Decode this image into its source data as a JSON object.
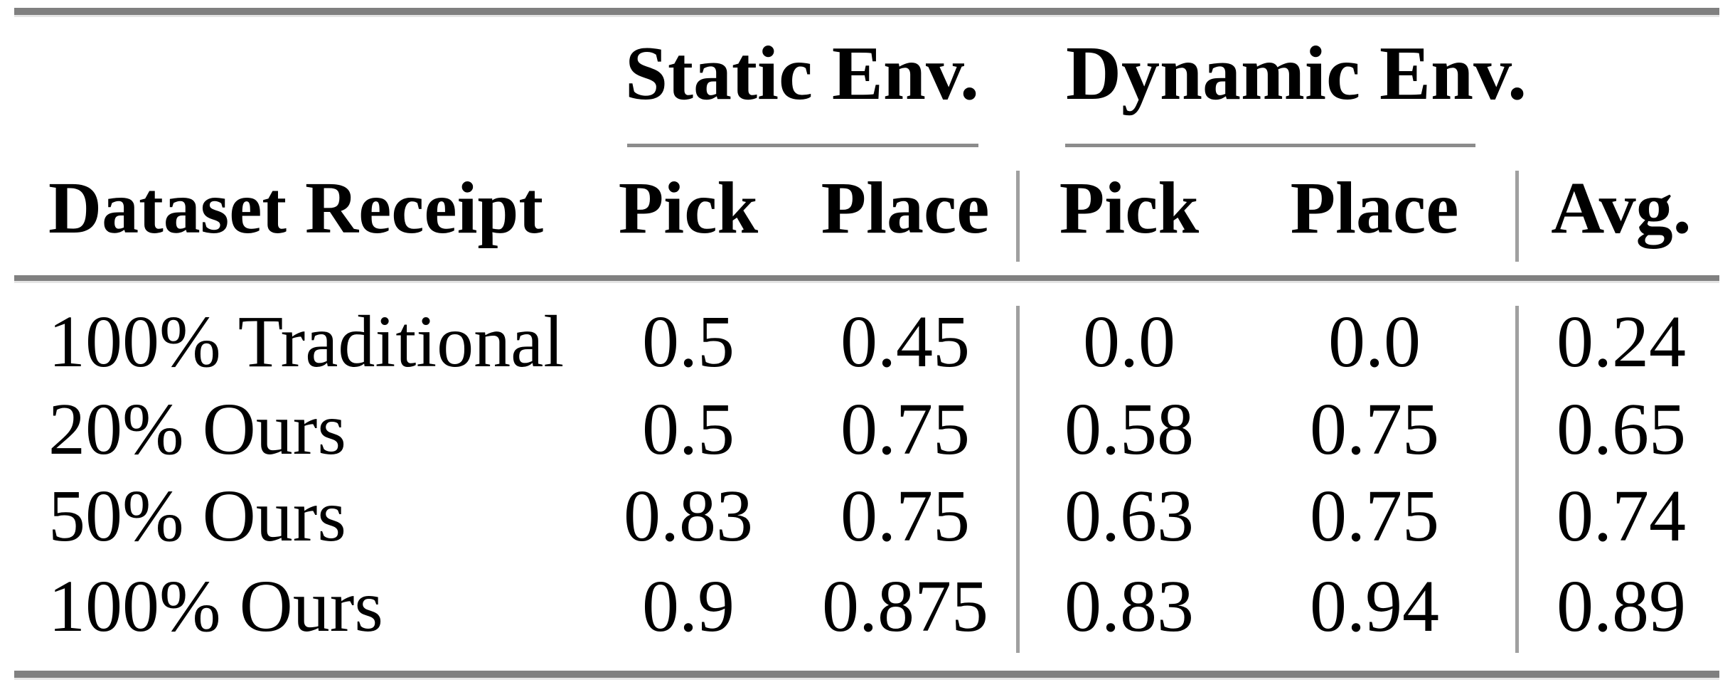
{
  "table": {
    "group_headers": [
      {
        "label": "Static Env."
      },
      {
        "label": "Dynamic Env."
      }
    ],
    "column_headers": {
      "dataset": "Dataset Receipt",
      "static_pick": "Pick",
      "static_place": "Place",
      "dynamic_pick": "Pick",
      "dynamic_place": "Place",
      "avg": "Avg."
    },
    "rows": [
      {
        "dataset_receipt": "100% Traditional",
        "static_pick": "0.5",
        "static_place": "0.45",
        "dynamic_pick": "0.0",
        "dynamic_place": "0.0",
        "avg": "0.24"
      },
      {
        "dataset_receipt": "20% Ours",
        "static_pick": "0.5",
        "static_place": "0.75",
        "dynamic_pick": "0.58",
        "dynamic_place": "0.75",
        "avg": "0.65"
      },
      {
        "dataset_receipt": "50% Ours",
        "static_pick": "0.83",
        "static_place": "0.75",
        "dynamic_pick": "0.63",
        "dynamic_place": "0.75",
        "avg": "0.74"
      },
      {
        "dataset_receipt": "100% Ours",
        "static_pick": "0.9",
        "static_place": "0.875",
        "dynamic_pick": "0.83",
        "dynamic_place": "0.94",
        "avg": "0.89"
      }
    ]
  },
  "colors": {
    "text": "#000000",
    "thick_rule": "#808080",
    "cmidrule": "#8c8c8c",
    "vertical_separator": "#a0a0a0",
    "background": "#ffffff"
  },
  "chart_data": {
    "type": "table",
    "title": "",
    "column_groups": [
      "",
      "Static Env.",
      "Static Env.",
      "Dynamic Env.",
      "Dynamic Env.",
      ""
    ],
    "columns": [
      "Dataset Receipt",
      "Pick",
      "Place",
      "Pick",
      "Place",
      "Avg."
    ],
    "rows": [
      [
        "100% Traditional",
        0.5,
        0.45,
        0.0,
        0.0,
        0.24
      ],
      [
        "20% Ours",
        0.5,
        0.75,
        0.58,
        0.75,
        0.65
      ],
      [
        "50% Ours",
        0.83,
        0.75,
        0.63,
        0.75,
        0.74
      ],
      [
        "100% Ours",
        0.9,
        0.875,
        0.83,
        0.94,
        0.89
      ]
    ]
  }
}
